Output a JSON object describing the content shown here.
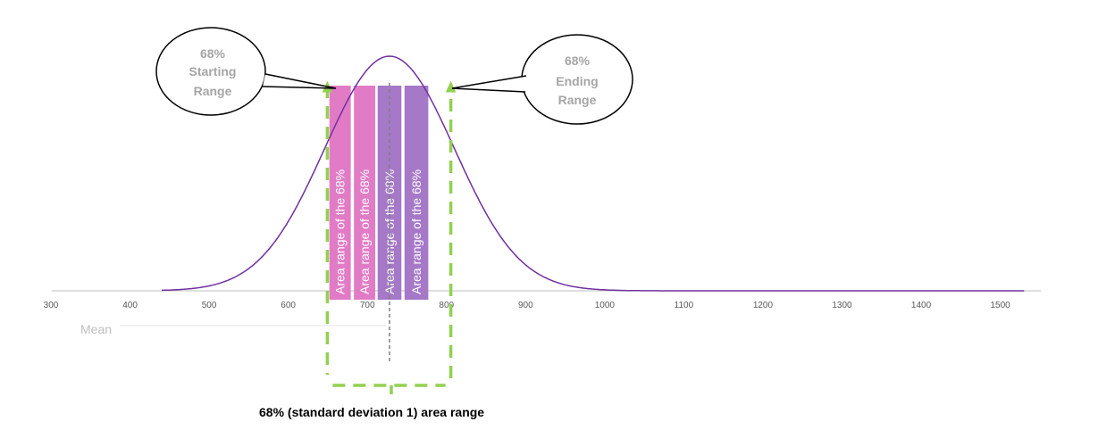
{
  "colors": {
    "curve": "#7030a0",
    "bar_pink": "#e27bc6",
    "bar_purple": "#a678c8",
    "dashed_box": "#92d050",
    "mean_line": "#808080",
    "axis": "#bfbfbf"
  },
  "chart_data": {
    "type": "area",
    "x_ticks": [
      300,
      400,
      500,
      600,
      700,
      800,
      900,
      1000,
      1100,
      1200,
      1300,
      1400,
      1500
    ],
    "xlim": [
      300,
      1550
    ],
    "curve": {
      "mean": 728,
      "sd": 82,
      "x_start": 440,
      "x_end": 1530
    },
    "bars": [
      {
        "x_start": 652,
        "x_end": 679,
        "label": "Area range of the 68%",
        "color": "#e27bc6"
      },
      {
        "x_start": 683,
        "x_end": 710,
        "label": "Area range of the 68%",
        "color": "#e27bc6"
      },
      {
        "x_start": 713,
        "x_end": 743,
        "label": "Area range of the 68%",
        "color": "#a678c8"
      },
      {
        "x_start": 747,
        "x_end": 777,
        "label": "Area range of the 68%",
        "color": "#a678c8"
      }
    ],
    "range": {
      "start": 646,
      "end": 810
    },
    "mean_label": "Mean",
    "callouts": [
      {
        "lines": [
          "68%",
          "Starting",
          "Range"
        ]
      },
      {
        "lines": [
          "68%",
          "Ending",
          "Range"
        ]
      }
    ],
    "caption": "68% (standard deviation 1) area range"
  }
}
